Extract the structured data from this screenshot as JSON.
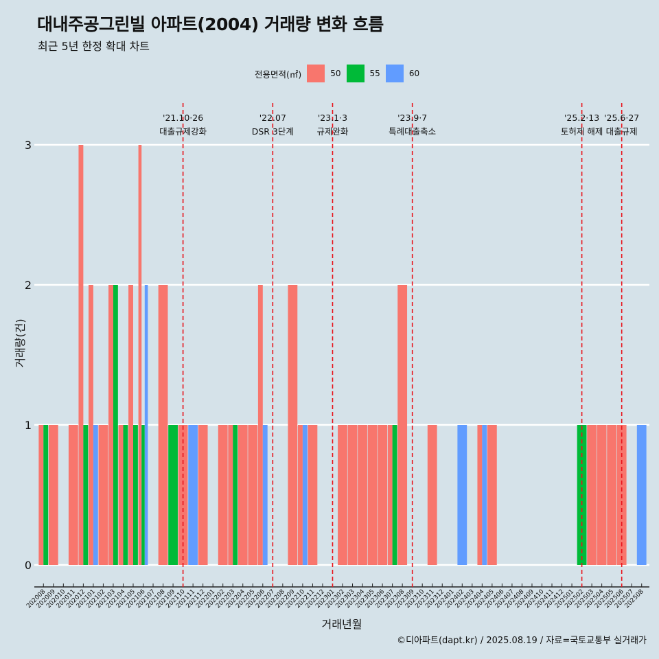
{
  "title": "대내주공그린빌 아파트(2004) 거래량 변화 흐름",
  "subtitle": "최근 5년 한정 확대 차트",
  "caption": "©디아파트(dapt.kr) / 2025.08.19 / 자료=국토교통부 실거래가",
  "colors": {
    "background": "#d5e2e9",
    "s50": "#f8766d",
    "s55": "#00ba38",
    "s60": "#619cff",
    "event_line": "#e8141c",
    "grid": "#ffffff"
  },
  "chart_data": {
    "type": "bar",
    "stacking": "dodge",
    "title": "대내주공그린빌 아파트(2004) 거래량 변화 흐름",
    "subtitle": "최근 5년 한정 확대 차트",
    "xlabel": "거래년월",
    "ylabel": "거래량(건)",
    "ylim": [
      0,
      3
    ],
    "yticks": [
      0,
      1,
      2,
      3
    ],
    "grid": true,
    "legend": {
      "title": "전용면적(㎡)",
      "position": "top",
      "entries": [
        "50",
        "55",
        "60"
      ]
    },
    "months": [
      "202008",
      "202009",
      "202010",
      "202011",
      "202012",
      "202101",
      "202102",
      "202103",
      "202104",
      "202105",
      "202106",
      "202107",
      "202108",
      "202109",
      "202110",
      "202111",
      "202112",
      "202201",
      "202202",
      "202203",
      "202204",
      "202205",
      "202206",
      "202207",
      "202208",
      "202209",
      "202210",
      "202211",
      "202212",
      "202301",
      "202302",
      "202303",
      "202304",
      "202305",
      "202306",
      "202307",
      "202308",
      "202309",
      "202310",
      "202311",
      "202312",
      "202401",
      "202402",
      "202403",
      "202404",
      "202405",
      "202406",
      "202407",
      "202408",
      "202409",
      "202410",
      "202411",
      "202412",
      "202501",
      "202502",
      "202503",
      "202504",
      "202505",
      "202506",
      "202507",
      "202508"
    ],
    "series": [
      {
        "name": "50",
        "values": [
          {
            "x": "202008",
            "y": 1
          },
          {
            "x": "202009",
            "y": 1
          },
          {
            "x": "202011",
            "y": 1
          },
          {
            "x": "202012",
            "y": 3
          },
          {
            "x": "202101",
            "y": 2
          },
          {
            "x": "202102",
            "y": 1
          },
          {
            "x": "202103",
            "y": 2
          },
          {
            "x": "202104",
            "y": 1
          },
          {
            "x": "202105",
            "y": 2
          },
          {
            "x": "202106",
            "y": 3
          },
          {
            "x": "202108",
            "y": 2
          },
          {
            "x": "202110",
            "y": 1
          },
          {
            "x": "202112",
            "y": 1
          },
          {
            "x": "202202",
            "y": 1
          },
          {
            "x": "202203",
            "y": 1
          },
          {
            "x": "202204",
            "y": 1
          },
          {
            "x": "202205",
            "y": 1
          },
          {
            "x": "202206",
            "y": 2
          },
          {
            "x": "202209",
            "y": 2
          },
          {
            "x": "202210",
            "y": 1
          },
          {
            "x": "202211",
            "y": 1
          },
          {
            "x": "202302",
            "y": 1
          },
          {
            "x": "202303",
            "y": 1
          },
          {
            "x": "202304",
            "y": 1
          },
          {
            "x": "202305",
            "y": 1
          },
          {
            "x": "202306",
            "y": 1
          },
          {
            "x": "202307",
            "y": 1
          },
          {
            "x": "202308",
            "y": 2
          },
          {
            "x": "202311",
            "y": 1
          },
          {
            "x": "202404",
            "y": 1
          },
          {
            "x": "202405",
            "y": 1
          },
          {
            "x": "202503",
            "y": 1
          },
          {
            "x": "202504",
            "y": 1
          },
          {
            "x": "202505",
            "y": 1
          },
          {
            "x": "202506",
            "y": 1
          }
        ]
      },
      {
        "name": "55",
        "values": [
          {
            "x": "202008",
            "y": 1
          },
          {
            "x": "202012",
            "y": 1
          },
          {
            "x": "202103",
            "y": 2
          },
          {
            "x": "202104",
            "y": 1
          },
          {
            "x": "202105",
            "y": 1
          },
          {
            "x": "202106",
            "y": 1
          },
          {
            "x": "202109",
            "y": 1
          },
          {
            "x": "202203",
            "y": 1
          },
          {
            "x": "202307",
            "y": 1
          },
          {
            "x": "202502",
            "y": 1
          }
        ]
      },
      {
        "name": "60",
        "values": [
          {
            "x": "202101",
            "y": 1
          },
          {
            "x": "202106",
            "y": 2
          },
          {
            "x": "202111",
            "y": 1
          },
          {
            "x": "202206",
            "y": 1
          },
          {
            "x": "202210",
            "y": 1
          },
          {
            "x": "202402",
            "y": 1
          },
          {
            "x": "202404",
            "y": 1
          },
          {
            "x": "202508",
            "y": 1
          }
        ]
      }
    ],
    "events": [
      {
        "x": "202110",
        "date": "'21.10·26",
        "label": "대출규제강화"
      },
      {
        "x": "202207",
        "date": "'22.07",
        "label": "DSR 3단계"
      },
      {
        "x": "202301",
        "date": "'23.1·3",
        "label": "규제완화"
      },
      {
        "x": "202309",
        "date": "'23.9·7",
        "label": "특례대출축소"
      },
      {
        "x": "202502",
        "date": "'25.2·13",
        "label": "토허제 해제"
      },
      {
        "x": "202506",
        "date": "'25.6·27",
        "label": "대출규제"
      }
    ]
  }
}
